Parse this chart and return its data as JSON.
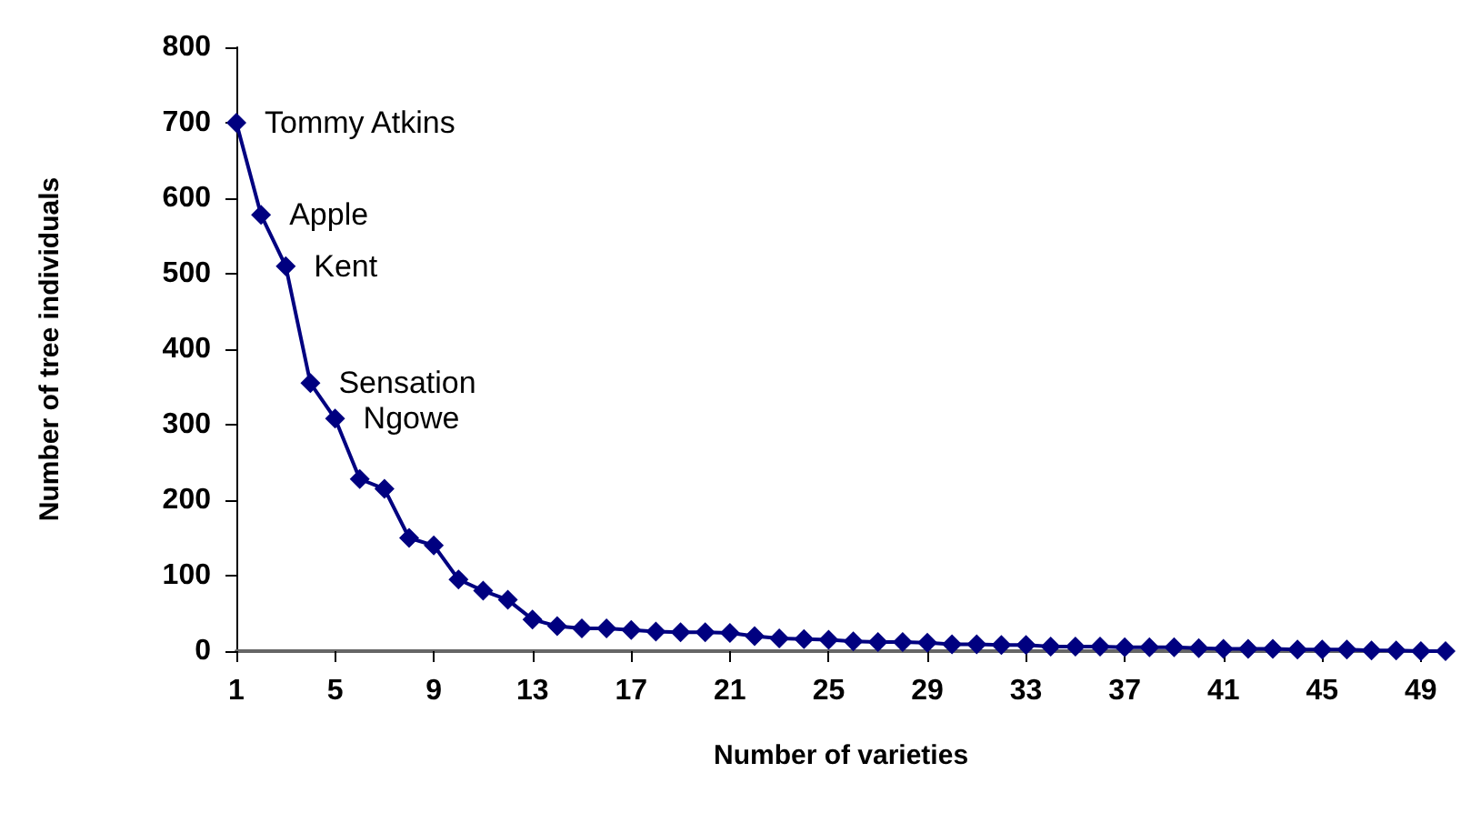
{
  "chart_data": {
    "type": "line",
    "xlabel": "Number of varieties",
    "ylabel": "Number of tree individuals",
    "x": [
      1,
      2,
      3,
      4,
      5,
      6,
      7,
      8,
      9,
      10,
      11,
      12,
      13,
      14,
      15,
      16,
      17,
      18,
      19,
      20,
      21,
      22,
      23,
      24,
      25,
      26,
      27,
      28,
      29,
      30,
      31,
      32,
      33,
      34,
      35,
      36,
      37,
      38,
      39,
      40,
      41,
      42,
      43,
      44,
      45,
      46,
      47,
      48,
      49,
      50
    ],
    "series": [
      {
        "color": "#000080",
        "values": [
          700,
          578,
          510,
          355,
          308,
          228,
          215,
          150,
          140,
          95,
          80,
          68,
          42,
          33,
          30,
          30,
          28,
          26,
          25,
          25,
          24,
          20,
          17,
          16,
          15,
          13,
          12,
          12,
          11,
          9,
          9,
          8,
          8,
          6,
          6,
          6,
          5,
          5,
          5,
          4,
          3,
          3,
          3,
          2,
          2,
          2,
          1,
          1,
          0,
          0
        ]
      }
    ],
    "xlim": [
      1,
      50
    ],
    "xticks": [
      1,
      5,
      9,
      13,
      17,
      21,
      25,
      29,
      33,
      37,
      41,
      45,
      49
    ],
    "ylim": [
      0,
      800
    ],
    "yticks": [
      0,
      100,
      200,
      300,
      400,
      500,
      600,
      700,
      800
    ],
    "grid": false,
    "marker": "diamond",
    "line_style": "solid",
    "annotations": [
      {
        "text": "Tommy Atkins",
        "x": 1,
        "y": 700
      },
      {
        "text": "Apple",
        "x": 2,
        "y": 578
      },
      {
        "text": "Kent",
        "x": 3,
        "y": 510
      },
      {
        "text": "Sensation",
        "x": 4,
        "y": 355
      },
      {
        "text": "Ngowe",
        "x": 5,
        "y": 308
      }
    ]
  }
}
